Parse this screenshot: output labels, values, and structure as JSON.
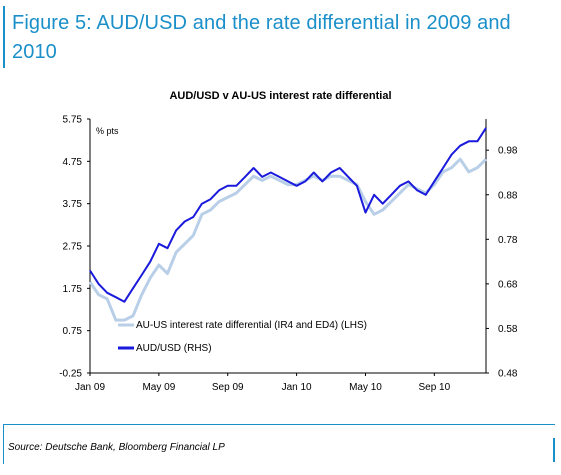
{
  "figure": {
    "title": "Figure 5: AUD/USD and the rate differential in 2009 and 2010",
    "source": "Source: Deutsche Bank, Bloomberg Financial LP",
    "accent_color": "#1b8fc9"
  },
  "chart_data": {
    "type": "line",
    "title": "AUD/USD v AU-US interest rate differential",
    "unit_label": "% pts",
    "x_ticks": [
      "Jan 09",
      "May 09",
      "Sep 09",
      "Jan 10",
      "May 10",
      "Sep 10"
    ],
    "y_left": {
      "ticks": [
        "5.75",
        "4.75",
        "3.75",
        "2.75",
        "1.75",
        "0.75",
        "-0.25"
      ],
      "min": -0.25,
      "max": 5.75
    },
    "y_right": {
      "ticks": [
        "0.98",
        "0.88",
        "0.78",
        "0.68",
        "0.58",
        "0.48"
      ],
      "min": 0.48,
      "max": 1.05
    },
    "grid": false,
    "legend_position": "bottom-left",
    "x_months": [
      0,
      0.5,
      1,
      1.5,
      2,
      2.5,
      3,
      3.5,
      4,
      4.5,
      5,
      5.5,
      6,
      6.5,
      7,
      7.5,
      8,
      8.5,
      9,
      9.5,
      10,
      10.5,
      11,
      11.5,
      12,
      12.5,
      13,
      13.5,
      14,
      14.5,
      15,
      15.5,
      16,
      16.5,
      17,
      17.5,
      18,
      18.5,
      19,
      19.5,
      20,
      20.5,
      21,
      21.5,
      22,
      22.5,
      23
    ],
    "series": [
      {
        "name": "AU-US interest rate differential (IR4 and ED4) (LHS)",
        "axis": "left",
        "color": "#b9cfe8",
        "values": [
          1.9,
          1.6,
          1.5,
          1.0,
          1.0,
          1.1,
          1.6,
          2.0,
          2.3,
          2.1,
          2.6,
          2.8,
          3.0,
          3.5,
          3.6,
          3.8,
          3.9,
          4.0,
          4.2,
          4.4,
          4.3,
          4.4,
          4.3,
          4.2,
          4.2,
          4.3,
          4.4,
          4.3,
          4.4,
          4.4,
          4.3,
          4.2,
          3.8,
          3.5,
          3.6,
          3.8,
          4.0,
          4.2,
          4.1,
          4.0,
          4.2,
          4.5,
          4.6,
          4.8,
          4.5,
          4.6,
          4.8
        ]
      },
      {
        "name": "AUD/USD (RHS)",
        "axis": "right",
        "color": "#1a1adc",
        "values": [
          0.71,
          0.68,
          0.66,
          0.65,
          0.64,
          0.67,
          0.7,
          0.73,
          0.77,
          0.76,
          0.8,
          0.82,
          0.83,
          0.86,
          0.87,
          0.89,
          0.9,
          0.9,
          0.92,
          0.94,
          0.92,
          0.93,
          0.92,
          0.91,
          0.9,
          0.91,
          0.93,
          0.91,
          0.93,
          0.94,
          0.92,
          0.9,
          0.84,
          0.88,
          0.86,
          0.88,
          0.9,
          0.91,
          0.89,
          0.88,
          0.91,
          0.94,
          0.97,
          0.99,
          1.0,
          1.0,
          1.03
        ]
      }
    ]
  }
}
